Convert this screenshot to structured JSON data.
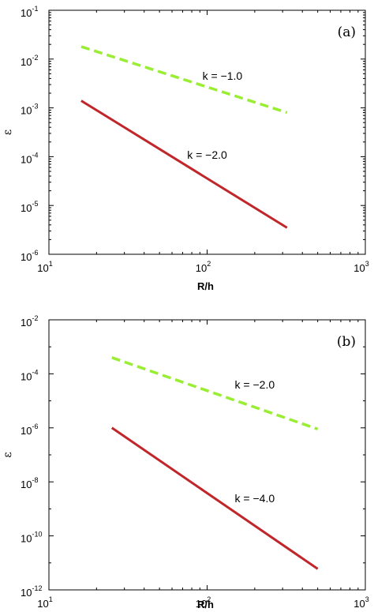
{
  "chart_data": [
    {
      "type": "line",
      "panel_tag": "(a)",
      "xlabel": "R/h",
      "ylabel": "ε",
      "xscale": "log",
      "yscale": "log",
      "xlim": [
        10,
        1000
      ],
      "ylim": [
        1e-06,
        0.1
      ],
      "x_ticks": [
        {
          "base": "10",
          "exp": "1",
          "value": 10
        },
        {
          "base": "10",
          "exp": "2",
          "value": 100
        },
        {
          "base": "10",
          "exp": "3",
          "value": 1000
        }
      ],
      "y_ticks": [
        {
          "base": "10",
          "exp": "-6",
          "value": 1e-06
        },
        {
          "base": "10",
          "exp": "-5",
          "value": 1e-05
        },
        {
          "base": "10",
          "exp": "-4",
          "value": 0.0001
        },
        {
          "base": "10",
          "exp": "-3",
          "value": 0.001
        },
        {
          "base": "10",
          "exp": "-2",
          "value": 0.01
        },
        {
          "base": "10",
          "exp": "-1",
          "value": 0.1
        }
      ],
      "series": [
        {
          "color": "#99ee33",
          "dash": true,
          "x": [
            16,
            320
          ],
          "y": [
            0.018,
            0.0008
          ]
        },
        {
          "color": "#c0262a",
          "dash": false,
          "x": [
            16,
            320
          ],
          "y": [
            0.0014,
            3.5e-06
          ]
        }
      ],
      "annotations": [
        {
          "text": "k = −1.0",
          "x": 125,
          "y": 0.0045
        },
        {
          "text": "k = −2.0",
          "x": 100,
          "y": 0.00011
        }
      ]
    },
    {
      "type": "line",
      "panel_tag": "(b)",
      "xlabel": "R/h",
      "ylabel": "ε",
      "xscale": "log",
      "yscale": "log",
      "xlim": [
        10,
        1000
      ],
      "ylim": [
        1e-12,
        0.01
      ],
      "x_ticks": [
        {
          "base": "10",
          "exp": "1",
          "value": 10
        },
        {
          "base": "10",
          "exp": "2",
          "value": 100
        },
        {
          "base": "10",
          "exp": "3",
          "value": 1000
        }
      ],
      "y_ticks": [
        {
          "base": "10",
          "exp": "-12",
          "value": 1e-12
        },
        {
          "base": "10",
          "exp": "-10",
          "value": 1e-10
        },
        {
          "base": "10",
          "exp": "-8",
          "value": 1e-08
        },
        {
          "base": "10",
          "exp": "-6",
          "value": 1e-06
        },
        {
          "base": "10",
          "exp": "-4",
          "value": 0.0001
        },
        {
          "base": "10",
          "exp": "-2",
          "value": 0.01
        }
      ],
      "series": [
        {
          "color": "#99ee33",
          "dash": true,
          "x": [
            25,
            500
          ],
          "y": [
            0.0004,
            9e-07
          ]
        },
        {
          "color": "#c0262a",
          "dash": false,
          "x": [
            25,
            500
          ],
          "y": [
            1e-06,
            6e-12
          ]
        }
      ],
      "annotations": [
        {
          "text": "k = −2.0",
          "x": 200,
          "y": 4e-05
        },
        {
          "text": "k = −4.0",
          "x": 200,
          "y": 2.5e-09
        }
      ]
    }
  ]
}
